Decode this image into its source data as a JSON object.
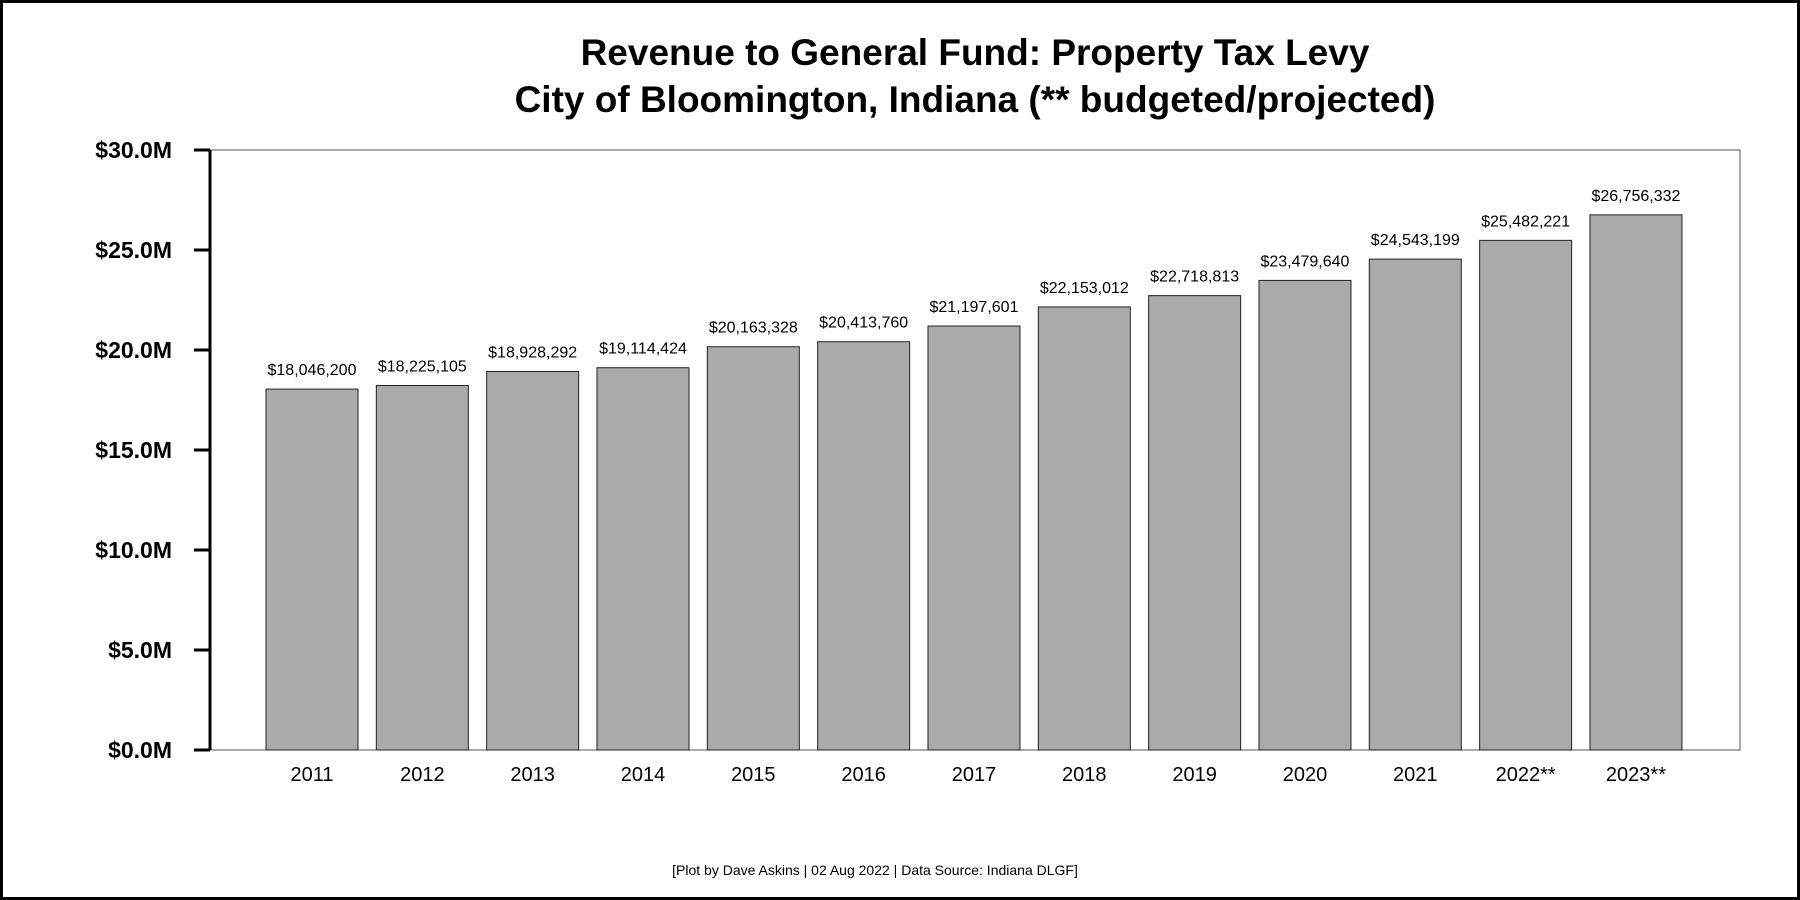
{
  "chart_data": {
    "type": "bar",
    "title_lines": [
      "Revenue to General Fund: Property Tax Levy",
      "City of Bloomington, Indiana (** budgeted/projected)"
    ],
    "categories": [
      "2011",
      "2012",
      "2013",
      "2014",
      "2015",
      "2016",
      "2017",
      "2018",
      "2019",
      "2020",
      "2021",
      "2022**",
      "2023**"
    ],
    "values": [
      18046200,
      18225105,
      18928292,
      19114424,
      20163328,
      20413760,
      21197601,
      22153012,
      22718813,
      23479640,
      24543199,
      25482221,
      26756332
    ],
    "data_labels": [
      "$18,046,200",
      "$18,225,105",
      "$18,928,292",
      "$19,114,424",
      "$20,163,328",
      "$20,413,760",
      "$21,197,601",
      "$22,153,012",
      "$22,718,813",
      "$23,479,640",
      "$24,543,199",
      "$25,482,221",
      "$26,756,332"
    ],
    "ylim": [
      0,
      30000000
    ],
    "yticks": [
      0,
      5000000,
      10000000,
      15000000,
      20000000,
      25000000,
      30000000
    ],
    "ytick_labels": [
      "$0.0M",
      "$5.0M",
      "$10.0M",
      "$15.0M",
      "$20.0M",
      "$25.0M",
      "$30.0M"
    ],
    "xlabel": "",
    "ylabel": "",
    "bar_color": "#aaaaaa",
    "footer": "[Plot by Dave Askins | 02 Aug 2022 | Data Source: Indiana DLGF]"
  }
}
